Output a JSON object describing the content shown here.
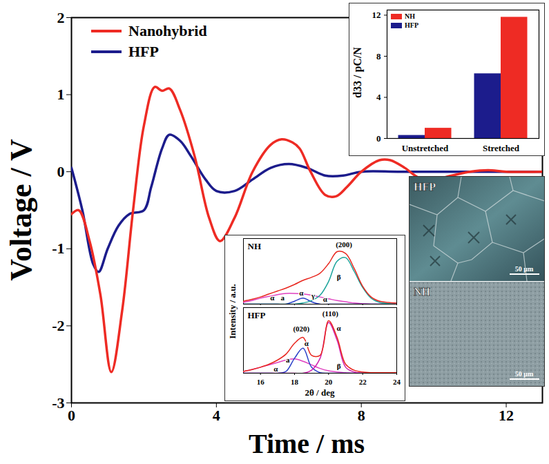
{
  "chart_data": [
    {
      "type": "line",
      "xlabel": "Time / ms",
      "ylabel": "Voltage / V",
      "xlim": [
        0,
        13
      ],
      "xticks": [
        0,
        4,
        8,
        12
      ],
      "ylim": [
        -3,
        2
      ],
      "yticks": [
        -3,
        -2,
        -1,
        0,
        1,
        2
      ],
      "legend": "top-left",
      "series": [
        {
          "name": "Nanohybrid",
          "color": "#ee2b24",
          "x": [
            0,
            0.2,
            0.5,
            0.8,
            1.1,
            1.4,
            1.7,
            2.0,
            2.3,
            2.5,
            2.7,
            3.0,
            3.4,
            3.8,
            4.1,
            4.5,
            5.0,
            5.5,
            5.8,
            6.1,
            6.3,
            6.6,
            7.0,
            7.3,
            7.6,
            8.0,
            8.5,
            8.8,
            9.2,
            9.6,
            10.0,
            10.5,
            11.0,
            11.5,
            12.0,
            13.0
          ],
          "values": [
            -0.55,
            -0.5,
            -0.9,
            -1.6,
            -2.6,
            -1.8,
            -0.5,
            0.6,
            1.1,
            1.05,
            1.08,
            0.8,
            0.2,
            -0.6,
            -0.9,
            -0.6,
            0.0,
            0.35,
            0.42,
            0.38,
            0.3,
            0.0,
            -0.3,
            -0.32,
            -0.2,
            0.0,
            0.15,
            0.15,
            0.05,
            -0.08,
            -0.1,
            -0.05,
            0.0,
            0.02,
            0.0,
            0.0
          ]
        },
        {
          "name": "HFP",
          "color": "#1c1c8c",
          "x": [
            0,
            0.3,
            0.6,
            0.75,
            1.0,
            1.3,
            1.6,
            2.0,
            2.2,
            2.5,
            2.7,
            3.0,
            3.3,
            3.7,
            4.0,
            4.5,
            5.0,
            5.5,
            6.0,
            6.5,
            7.0,
            7.5,
            8.0,
            9.0,
            10.0,
            11.0,
            12.0,
            13.0
          ],
          "values": [
            0.05,
            -0.5,
            -1.2,
            -1.3,
            -1.0,
            -0.7,
            -0.55,
            -0.5,
            -0.2,
            0.3,
            0.48,
            0.4,
            0.2,
            -0.1,
            -0.25,
            -0.25,
            -0.1,
            0.05,
            0.1,
            0.05,
            -0.05,
            -0.05,
            0.0,
            0.0,
            0.0,
            0.0,
            0.0,
            0.0
          ]
        }
      ]
    },
    {
      "type": "bar",
      "ylabel": "d33 / pC/N",
      "categories": [
        "Unstretched",
        "Stretched"
      ],
      "ylim": [
        0,
        12.5
      ],
      "yticks": [
        0,
        4,
        8,
        12
      ],
      "legend": "top-left",
      "series": [
        {
          "name": "NH",
          "color": "#ee2b24",
          "values": [
            1.0,
            11.8
          ]
        },
        {
          "name": "HFP",
          "color": "#1c1c8c",
          "values": [
            0.3,
            6.3
          ]
        }
      ]
    },
    {
      "type": "line",
      "xlabel": "2θ / deg",
      "ylabel": "Intensity / a.u.",
      "xlim": [
        15,
        24
      ],
      "xticks": [
        16,
        18,
        20,
        22,
        24
      ],
      "ylim": [
        0,
        1.1
      ],
      "yticks": [],
      "x": [
        15,
        15.5,
        16,
        16.5,
        17,
        17.5,
        18,
        18.5,
        19,
        19.5,
        20,
        20.5,
        21,
        21.5,
        22,
        22.5,
        23,
        23.5,
        24
      ],
      "panels": [
        {
          "title": "NH",
          "tick_labels": false,
          "series": [
            {
              "color": "#e040c0",
              "values": [
                0.03,
                0.06,
                0.1,
                0.13,
                0.16,
                0.18,
                0.18,
                0.17,
                0.15,
                0.12,
                0.09,
                0.06,
                0.04,
                0.02,
                0.01,
                0,
                0,
                0,
                0
              ]
            },
            {
              "color": "#2a3fc8",
              "values": [
                0,
                0,
                0,
                0,
                0,
                0,
                0.05,
                0.1,
                0.04,
                0,
                0,
                0,
                0,
                0,
                0,
                0,
                0,
                0,
                0
              ]
            },
            {
              "color": "#1aa39a",
              "values": [
                0,
                0,
                0,
                0,
                0,
                0,
                0,
                0.02,
                0.06,
                0.15,
                0.38,
                0.72,
                0.78,
                0.55,
                0.28,
                0.1,
                0.03,
                0.01,
                0
              ]
            },
            {
              "color": "#e8261e",
              "values": [
                0.05,
                0.08,
                0.12,
                0.17,
                0.22,
                0.27,
                0.33,
                0.4,
                0.45,
                0.52,
                0.68,
                0.88,
                0.85,
                0.6,
                0.3,
                0.12,
                0.05,
                0.03,
                0.02
              ]
            }
          ],
          "annotations": [
            {
              "text": "α",
              "x": 16.7,
              "y": 0.1
            },
            {
              "text": "a",
              "x": 17.3,
              "y": 0.1
            },
            {
              "text": "α",
              "x": 18.4,
              "y": 0.18
            },
            {
              "text": "γ",
              "x": 19.1,
              "y": 0.14
            },
            {
              "text": "α",
              "x": 19.8,
              "y": 0.08
            },
            {
              "text": "β",
              "x": 20.6,
              "y": 0.45
            },
            {
              "text": "(200)",
              "x": 20.9,
              "y": 1.0
            }
          ]
        },
        {
          "title": "HFP",
          "tick_labels": "x",
          "series": [
            {
              "color": "#e040c0",
              "values": [
                0.03,
                0.06,
                0.1,
                0.14,
                0.18,
                0.22,
                0.24,
                0.2,
                0.14,
                0.08,
                0.04,
                0.02,
                0.01,
                0,
                0,
                0,
                0,
                0,
                0
              ]
            },
            {
              "color": "#2a3fc8",
              "values": [
                0,
                0,
                0,
                0,
                0,
                0.03,
                0.25,
                0.42,
                0.1,
                0.01,
                0,
                0,
                0,
                0,
                0,
                0,
                0,
                0,
                0
              ]
            },
            {
              "color": "#d020b0",
              "values": [
                0,
                0,
                0,
                0,
                0,
                0,
                0,
                0,
                0.05,
                0.25,
                0.85,
                0.55,
                0.1,
                0.02,
                0,
                0,
                0,
                0,
                0
              ]
            },
            {
              "color": "#e8261e",
              "values": [
                0.03,
                0.06,
                0.1,
                0.15,
                0.22,
                0.32,
                0.5,
                0.6,
                0.3,
                0.3,
                0.88,
                0.6,
                0.15,
                0.05,
                0.02,
                0.01,
                0.01,
                0.01,
                0.01
              ]
            }
          ],
          "annotations": [
            {
              "text": "α",
              "x": 16.9,
              "y": 0.07
            },
            {
              "text": "a",
              "x": 17.6,
              "y": 0.22
            },
            {
              "text": "(020)",
              "x": 18.4,
              "y": 0.74
            },
            {
              "text": "α",
              "x": 18.7,
              "y": 0.5
            },
            {
              "text": "(110)",
              "x": 20.1,
              "y": 1.0
            },
            {
              "text": "α",
              "x": 20.6,
              "y": 0.75
            },
            {
              "text": "β",
              "x": 20.6,
              "y": 0.12
            }
          ]
        }
      ]
    },
    {
      "type": "image",
      "panels": [
        {
          "title": "HFP",
          "scale_bar": "50 μm"
        },
        {
          "title": "NH",
          "scale_bar": "50 μm"
        }
      ]
    }
  ]
}
